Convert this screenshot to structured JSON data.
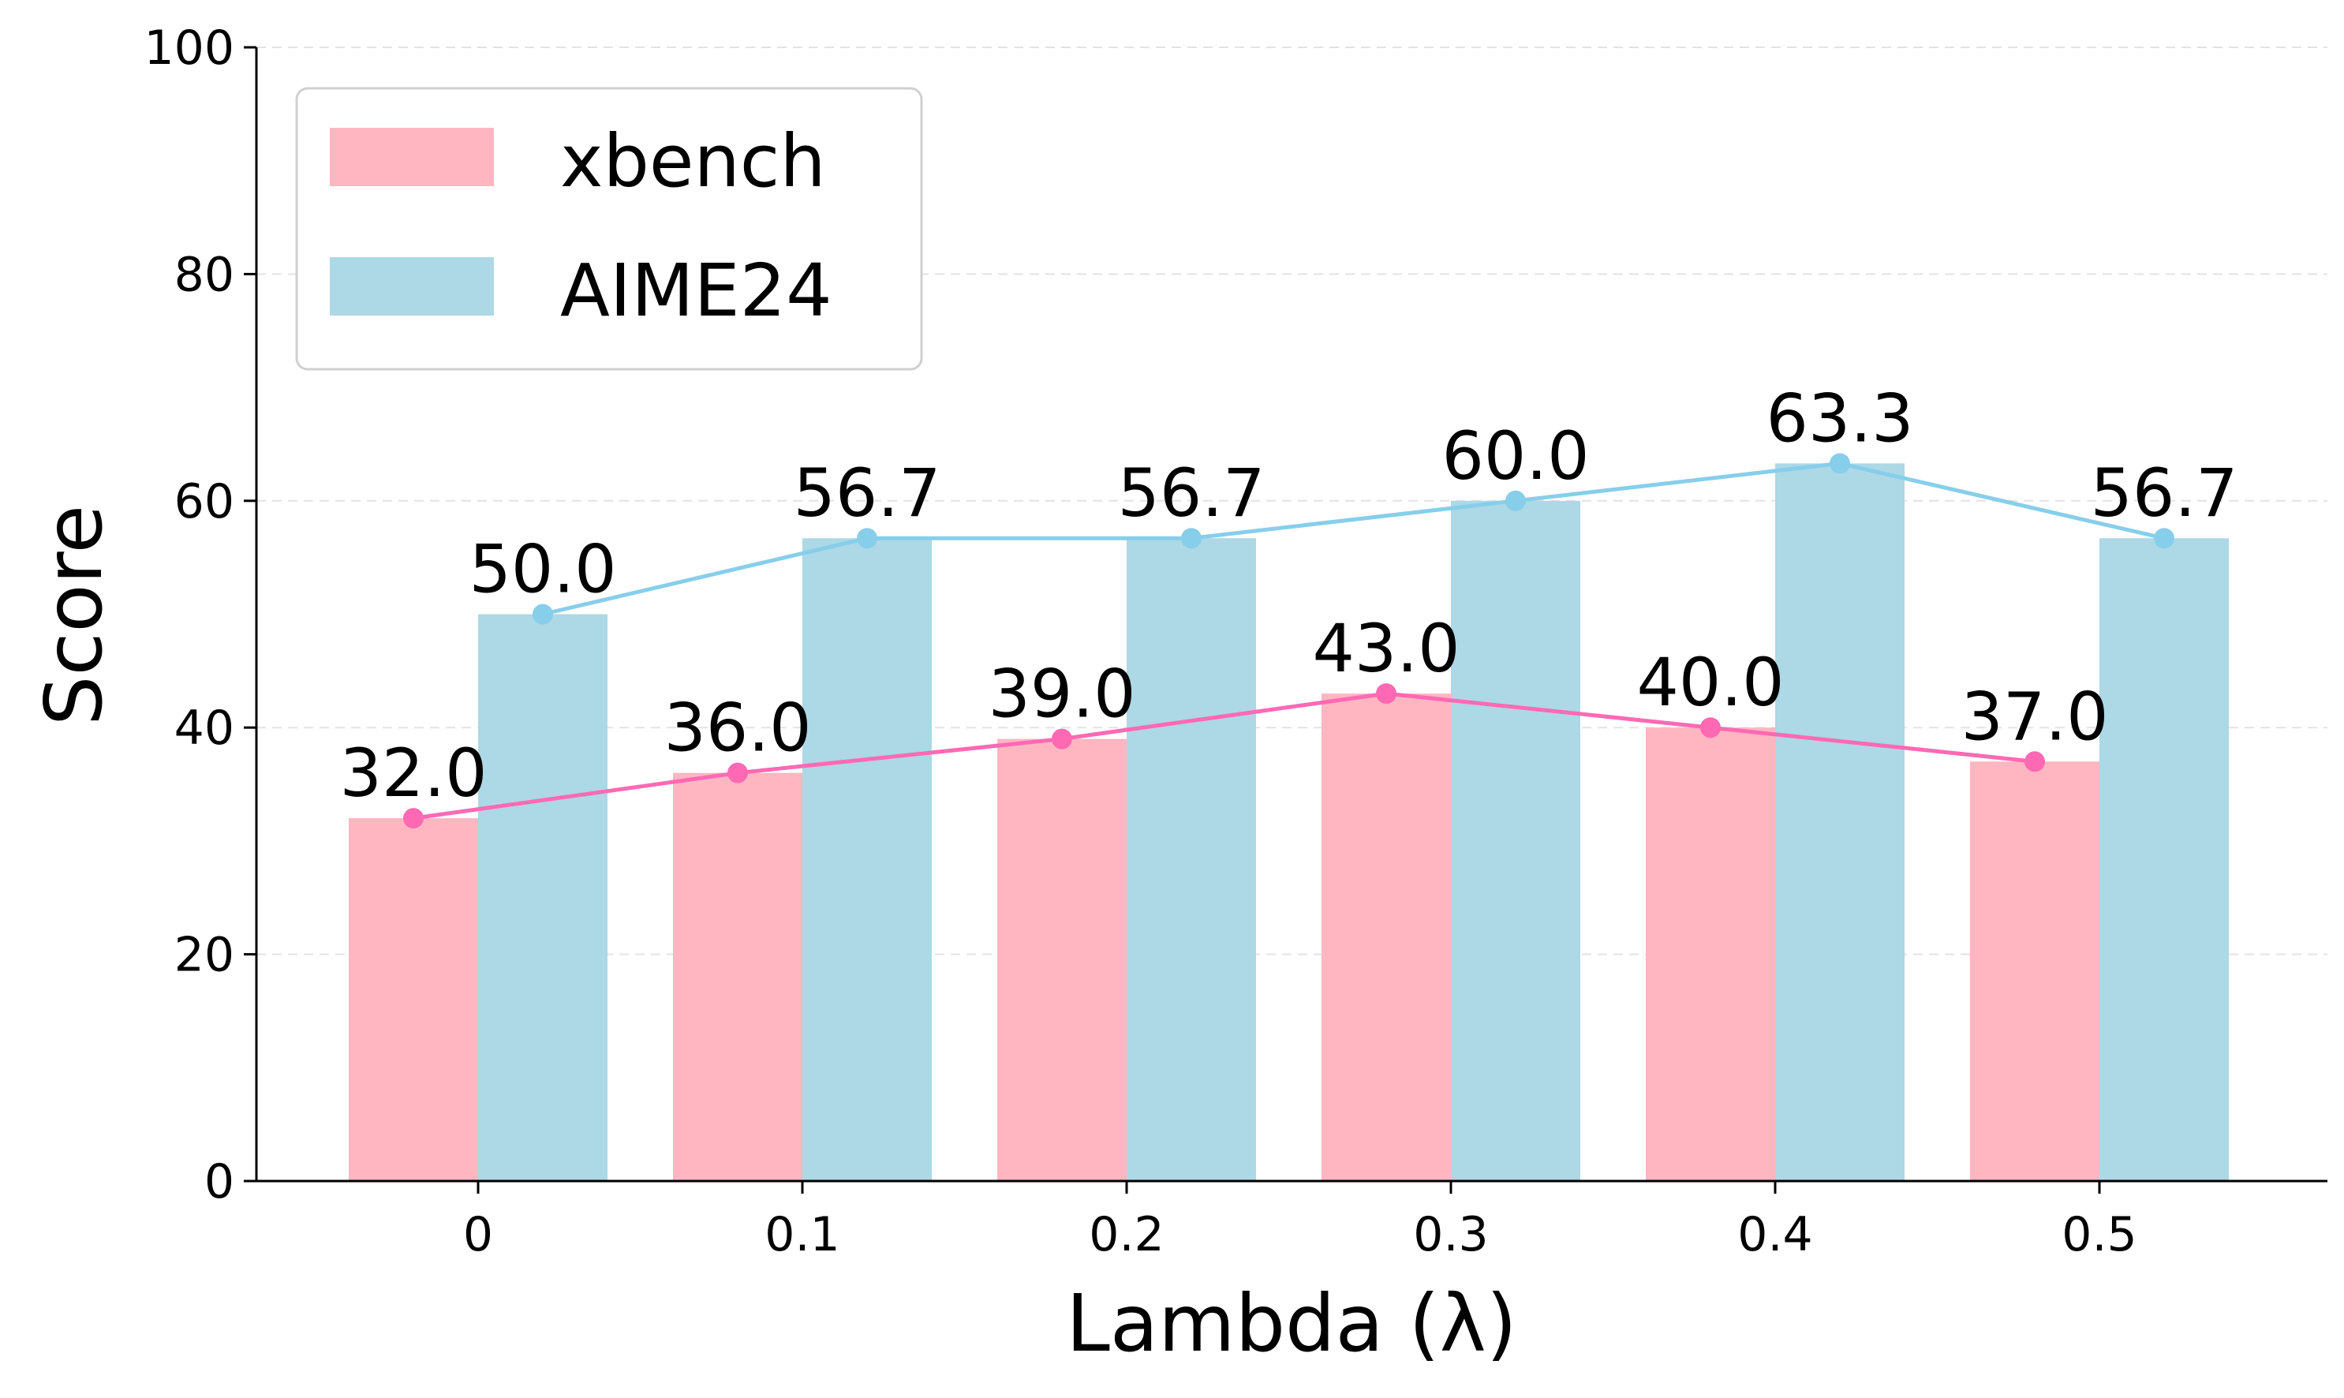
{
  "chart_data": {
    "type": "bar",
    "categories": [
      "0",
      "0.1",
      "0.2",
      "0.3",
      "0.4",
      "0.5"
    ],
    "series": [
      {
        "name": "xbench",
        "values": [
          32.0,
          36.0,
          39.0,
          43.0,
          40.0,
          37.0
        ],
        "bar_color": "#ffb6c1",
        "line_color": "#ff69b4"
      },
      {
        "name": "AIME24",
        "values": [
          50.0,
          56.7,
          56.7,
          60.0,
          63.3,
          56.7
        ],
        "bar_color": "#add8e6",
        "line_color": "#87ceeb"
      }
    ],
    "data_labels": {
      "xbench": [
        "32.0",
        "36.0",
        "39.0",
        "43.0",
        "40.0",
        "37.0"
      ],
      "AIME24": [
        "50.0",
        "56.7",
        "56.7",
        "60.0",
        "63.3",
        "56.7"
      ]
    },
    "xlabel": "Lambda (λ)",
    "ylabel": "Score",
    "ylim": [
      0,
      100
    ],
    "yticks": [
      "0",
      "20",
      "40",
      "60",
      "80",
      "100"
    ],
    "grid": "horizontal dashed",
    "legend": "top-left",
    "overlay_lines": true
  }
}
